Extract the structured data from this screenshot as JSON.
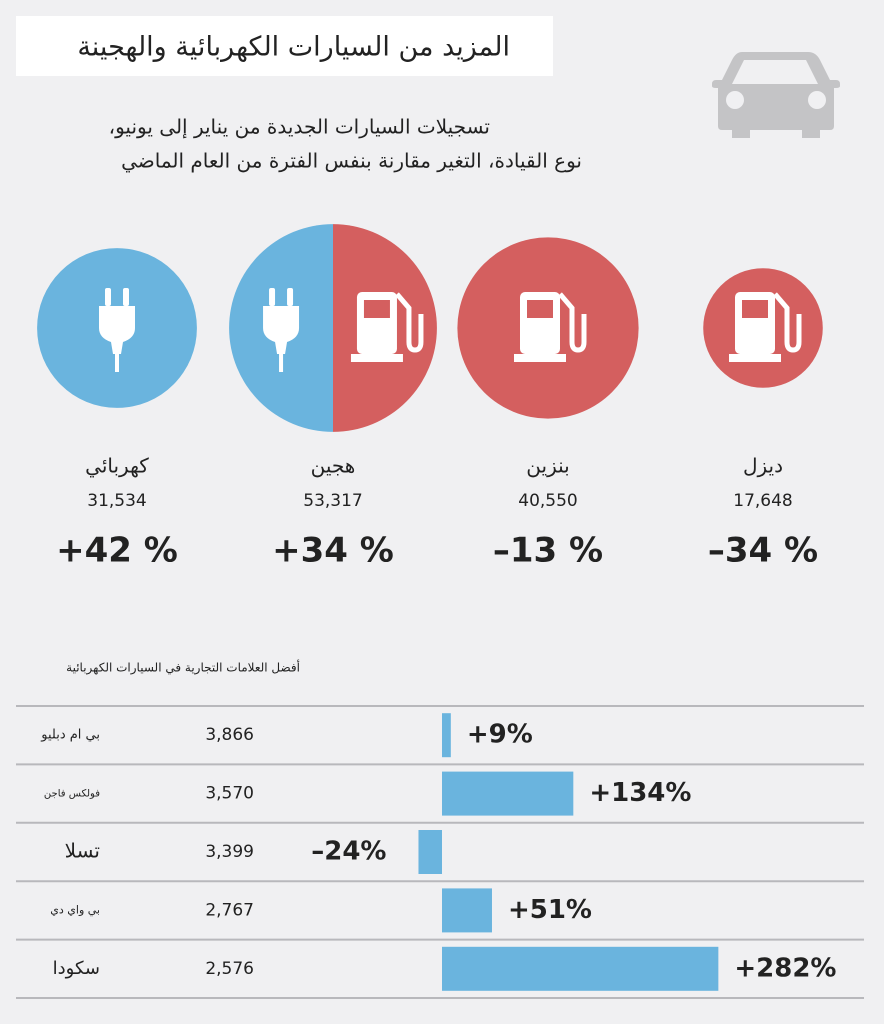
{
  "title": "المزيد من السيارات الكهربائية والهجينة",
  "subtitle": [
    "تسجيلات السيارات الجديدة من يناير إلى يونيو،",
    "نوع القيادة، التغير مقارنة بنفس الفترة من العام الماضي"
  ],
  "chart_data": [
    {
      "type": "bubble",
      "categories": [
        "كهربائي",
        "هجين",
        "بنزين",
        "ديزل"
      ],
      "values": [
        31534,
        53317,
        40550,
        17648
      ],
      "value_labels": [
        "31,534",
        "53,317",
        "40,550",
        "17,648"
      ],
      "changes": [
        42,
        34,
        -13,
        -34
      ],
      "change_labels": [
        "+42 %",
        "+34 %",
        "–13 %",
        "–34 %"
      ],
      "colors": [
        [
          "#6ab4de"
        ],
        [
          "#6ab4de",
          "#d45f5f"
        ],
        [
          "#d45f5f"
        ],
        [
          "#d45f5f"
        ]
      ]
    },
    {
      "type": "bar",
      "orientation": "horizontal",
      "title": "أفضل العلامات التجارية في السيارات الكهربائية",
      "categories": [
        "بي ام دبليو",
        "فولكس فاجن",
        "تسلا",
        "بي واي دي",
        "سكودا"
      ],
      "registrations": [
        3866,
        3570,
        3399,
        2767,
        2576
      ],
      "registration_labels": [
        "3,866",
        "3,570",
        "3,399",
        "2,767",
        "2,576"
      ],
      "values": [
        9,
        134,
        -24,
        51,
        282
      ],
      "value_labels": [
        "+9%",
        "+134%",
        "–24%",
        "+51%",
        "+282%"
      ],
      "color": "#6ab4de"
    }
  ]
}
